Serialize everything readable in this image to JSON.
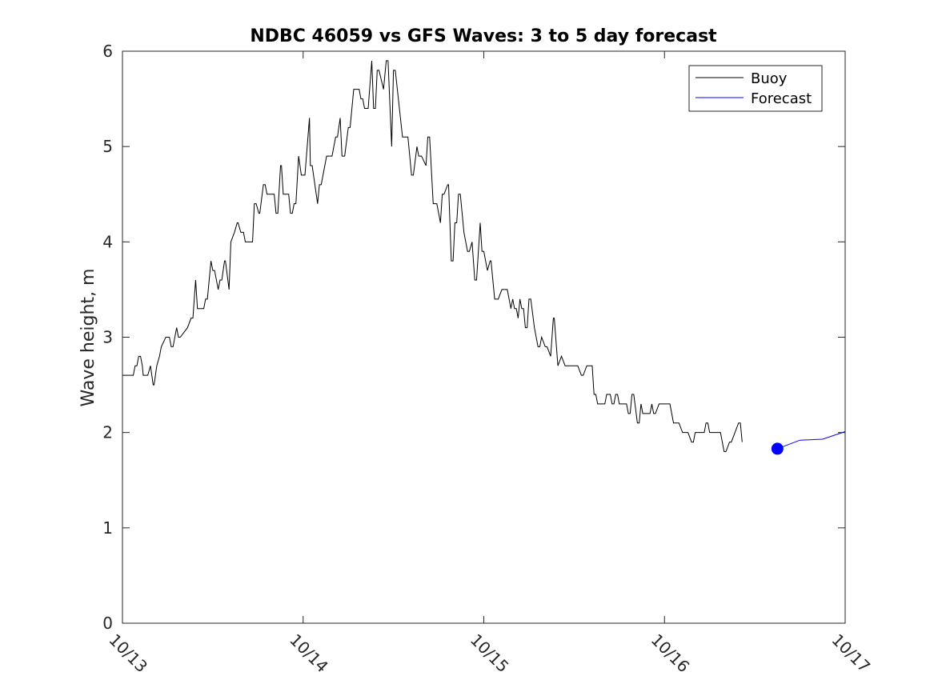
{
  "chart_data": {
    "type": "line",
    "title": "NDBC 46059 vs GFS Waves: 3 to 5 day forecast",
    "xlabel": "",
    "ylabel": "Wave height, m",
    "xlim": [
      "10/13 00:00",
      "10/17 00:00"
    ],
    "ylim": [
      0,
      6
    ],
    "x_ticks": [
      "10/13",
      "10/14",
      "10/15",
      "10/16",
      "10/17"
    ],
    "y_ticks": [
      "0",
      "1",
      "2",
      "3",
      "4",
      "5",
      "6"
    ],
    "grid": false,
    "legend": {
      "position": "top-right",
      "entries": [
        "Buoy",
        "Forecast"
      ]
    },
    "series": [
      {
        "name": "Buoy",
        "color": "#000000",
        "x_unit": "days after 10/13 00:00",
        "points": [
          [
            0.0,
            2.6
          ],
          [
            0.06,
            2.6
          ],
          [
            0.07,
            2.7
          ],
          [
            0.08,
            2.7
          ],
          [
            0.09,
            2.8
          ],
          [
            0.1,
            2.8
          ],
          [
            0.11,
            2.7
          ],
          [
            0.115,
            2.6
          ],
          [
            0.14,
            2.6
          ],
          [
            0.155,
            2.7
          ],
          [
            0.17,
            2.5
          ],
          [
            0.175,
            2.5
          ],
          [
            0.19,
            2.7
          ],
          [
            0.205,
            2.8
          ],
          [
            0.215,
            2.9
          ],
          [
            0.24,
            3.0
          ],
          [
            0.26,
            3.0
          ],
          [
            0.27,
            2.9
          ],
          [
            0.28,
            2.9
          ],
          [
            0.3,
            3.1
          ],
          [
            0.31,
            3.0
          ],
          [
            0.32,
            3.0
          ],
          [
            0.36,
            3.1
          ],
          [
            0.38,
            3.2
          ],
          [
            0.39,
            3.2
          ],
          [
            0.405,
            3.6
          ],
          [
            0.415,
            3.3
          ],
          [
            0.45,
            3.3
          ],
          [
            0.46,
            3.4
          ],
          [
            0.47,
            3.4
          ],
          [
            0.49,
            3.8
          ],
          [
            0.5,
            3.7
          ],
          [
            0.51,
            3.7
          ],
          [
            0.53,
            3.5
          ],
          [
            0.54,
            3.6
          ],
          [
            0.55,
            3.6
          ],
          [
            0.565,
            3.8
          ],
          [
            0.57,
            3.8
          ],
          [
            0.59,
            3.5
          ],
          [
            0.6,
            4.0
          ],
          [
            0.62,
            4.1
          ],
          [
            0.635,
            4.2
          ],
          [
            0.64,
            4.2
          ],
          [
            0.655,
            4.1
          ],
          [
            0.67,
            4.1
          ],
          [
            0.68,
            4.0
          ],
          [
            0.72,
            4.0
          ],
          [
            0.73,
            4.4
          ],
          [
            0.74,
            4.4
          ],
          [
            0.755,
            4.3
          ],
          [
            0.76,
            4.3
          ],
          [
            0.78,
            4.6
          ],
          [
            0.79,
            4.6
          ],
          [
            0.8,
            4.5
          ],
          [
            0.84,
            4.5
          ],
          [
            0.85,
            4.3
          ],
          [
            0.86,
            4.3
          ],
          [
            0.875,
            4.8
          ],
          [
            0.88,
            4.8
          ],
          [
            0.89,
            4.5
          ],
          [
            0.92,
            4.5
          ],
          [
            0.93,
            4.3
          ],
          [
            0.94,
            4.3
          ],
          [
            0.95,
            4.4
          ],
          [
            0.96,
            4.4
          ],
          [
            0.975,
            4.9
          ],
          [
            0.99,
            4.7
          ],
          [
            1.01,
            4.7
          ],
          [
            1.035,
            5.3
          ],
          [
            1.04,
            4.8
          ],
          [
            1.05,
            4.8
          ],
          [
            1.08,
            4.4
          ],
          [
            1.09,
            4.6
          ],
          [
            1.1,
            4.6
          ],
          [
            1.12,
            4.8
          ],
          [
            1.13,
            4.9
          ],
          [
            1.16,
            4.9
          ],
          [
            1.18,
            5.1
          ],
          [
            1.19,
            5.1
          ],
          [
            1.205,
            5.3
          ],
          [
            1.215,
            4.9
          ],
          [
            1.23,
            4.9
          ],
          [
            1.25,
            5.2
          ],
          [
            1.26,
            5.2
          ],
          [
            1.28,
            5.6
          ],
          [
            1.31,
            5.6
          ],
          [
            1.32,
            5.5
          ],
          [
            1.33,
            5.5
          ],
          [
            1.34,
            5.4
          ],
          [
            1.36,
            5.4
          ],
          [
            1.38,
            5.9
          ],
          [
            1.39,
            5.4
          ],
          [
            1.4,
            5.4
          ],
          [
            1.41,
            5.8
          ],
          [
            1.42,
            5.8
          ],
          [
            1.445,
            5.6
          ],
          [
            1.46,
            5.9
          ],
          [
            1.47,
            5.9
          ],
          [
            1.49,
            5.0
          ],
          [
            1.5,
            5.8
          ],
          [
            1.51,
            5.8
          ],
          [
            1.55,
            5.1
          ],
          [
            1.58,
            5.1
          ],
          [
            1.6,
            4.7
          ],
          [
            1.61,
            4.7
          ],
          [
            1.63,
            5.0
          ],
          [
            1.64,
            4.9
          ],
          [
            1.655,
            4.9
          ],
          [
            1.68,
            4.8
          ],
          [
            1.69,
            5.1
          ],
          [
            1.7,
            5.1
          ],
          [
            1.72,
            4.4
          ],
          [
            1.74,
            4.4
          ],
          [
            1.76,
            4.2
          ],
          [
            1.77,
            4.5
          ],
          [
            1.78,
            4.5
          ],
          [
            1.8,
            4.6
          ],
          [
            1.805,
            4.6
          ],
          [
            1.82,
            3.8
          ],
          [
            1.83,
            3.8
          ],
          [
            1.84,
            4.2
          ],
          [
            1.85,
            4.2
          ],
          [
            1.86,
            4.5
          ],
          [
            1.87,
            4.5
          ],
          [
            1.89,
            4.1
          ],
          [
            1.91,
            3.9
          ],
          [
            1.92,
            3.9
          ],
          [
            1.935,
            4.0
          ],
          [
            1.95,
            3.6
          ],
          [
            1.96,
            3.6
          ],
          [
            1.98,
            4.2
          ],
          [
            1.99,
            3.9
          ],
          [
            2.0,
            3.9
          ],
          [
            2.02,
            3.7
          ],
          [
            2.035,
            3.8
          ],
          [
            2.04,
            3.8
          ],
          [
            2.06,
            3.4
          ],
          [
            2.08,
            3.4
          ],
          [
            2.1,
            3.5
          ],
          [
            2.13,
            3.5
          ],
          [
            2.15,
            3.3
          ],
          [
            2.16,
            3.4
          ],
          [
            2.17,
            3.3
          ],
          [
            2.18,
            3.3
          ],
          [
            2.19,
            3.2
          ],
          [
            2.2,
            3.4
          ],
          [
            2.21,
            3.3
          ],
          [
            2.22,
            3.3
          ],
          [
            2.23,
            3.1
          ],
          [
            2.24,
            3.1
          ],
          [
            2.25,
            3.4
          ],
          [
            2.26,
            3.4
          ],
          [
            2.28,
            3.1
          ],
          [
            2.3,
            2.9
          ],
          [
            2.31,
            2.9
          ],
          [
            2.32,
            3.0
          ],
          [
            2.34,
            2.9
          ],
          [
            2.35,
            2.9
          ],
          [
            2.37,
            2.8
          ],
          [
            2.385,
            3.2
          ],
          [
            2.39,
            3.2
          ],
          [
            2.41,
            2.7
          ],
          [
            2.43,
            2.8
          ],
          [
            2.45,
            2.7
          ],
          [
            2.52,
            2.7
          ],
          [
            2.54,
            2.6
          ],
          [
            2.55,
            2.6
          ],
          [
            2.57,
            2.7
          ],
          [
            2.6,
            2.7
          ],
          [
            2.61,
            2.4
          ],
          [
            2.62,
            2.4
          ],
          [
            2.63,
            2.3
          ],
          [
            2.67,
            2.3
          ],
          [
            2.68,
            2.4
          ],
          [
            2.7,
            2.4
          ],
          [
            2.71,
            2.3
          ],
          [
            2.72,
            2.3
          ],
          [
            2.73,
            2.4
          ],
          [
            2.74,
            2.4
          ],
          [
            2.75,
            2.3
          ],
          [
            2.79,
            2.3
          ],
          [
            2.8,
            2.2
          ],
          [
            2.81,
            2.2
          ],
          [
            2.82,
            2.4
          ],
          [
            2.83,
            2.4
          ],
          [
            2.85,
            2.1
          ],
          [
            2.86,
            2.1
          ],
          [
            2.87,
            2.3
          ],
          [
            2.88,
            2.2
          ],
          [
            2.92,
            2.2
          ],
          [
            2.93,
            2.3
          ],
          [
            2.94,
            2.2
          ],
          [
            2.95,
            2.2
          ],
          [
            2.97,
            2.3
          ],
          [
            3.03,
            2.3
          ],
          [
            3.05,
            2.1
          ],
          [
            3.08,
            2.1
          ],
          [
            3.1,
            2.0
          ],
          [
            3.13,
            2.0
          ],
          [
            3.15,
            1.9
          ],
          [
            3.16,
            1.9
          ],
          [
            3.17,
            2.0
          ],
          [
            3.22,
            2.0
          ],
          [
            3.23,
            2.1
          ],
          [
            3.24,
            2.1
          ],
          [
            3.25,
            2.0
          ],
          [
            3.3,
            2.0
          ],
          [
            3.31,
            2.0
          ],
          [
            3.33,
            1.8
          ],
          [
            3.34,
            1.8
          ],
          [
            3.36,
            1.9
          ],
          [
            3.37,
            1.9
          ],
          [
            3.39,
            2.0
          ],
          [
            3.41,
            2.1
          ],
          [
            3.42,
            2.1
          ],
          [
            3.43,
            1.9
          ]
        ]
      },
      {
        "name": "Forecast",
        "color": "#0000ff",
        "x_unit": "days after 10/13 00:00",
        "points": [
          [
            3.625,
            1.83
          ],
          [
            3.75,
            1.92
          ],
          [
            3.875,
            1.93
          ],
          [
            4.0,
            2.01
          ]
        ],
        "marker": {
          "index": 0,
          "shape": "filled-circle"
        }
      }
    ]
  }
}
